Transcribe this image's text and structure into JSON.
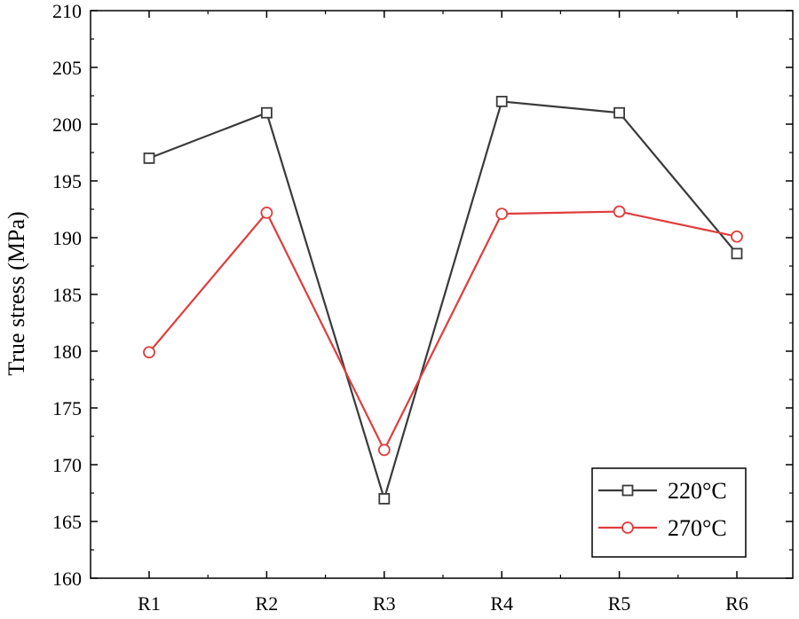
{
  "chart_data": {
    "type": "line",
    "title": "",
    "xlabel": "",
    "ylabel": "True stress (MPa)",
    "categories": [
      "R1",
      "R2",
      "R3",
      "R4",
      "R5",
      "R6"
    ],
    "ylim": [
      160,
      210
    ],
    "yticks": [
      "160",
      "165",
      "170",
      "175",
      "180",
      "185",
      "190",
      "195",
      "200",
      "205",
      "210"
    ],
    "grid": false,
    "legend_position": "bottom-right",
    "series": [
      {
        "name": "220°C",
        "values": [
          197.0,
          201.0,
          167.0,
          202.0,
          201.0,
          188.6
        ],
        "color": "#3a3a3a",
        "marker": "square"
      },
      {
        "name": "270°C",
        "values": [
          179.9,
          192.2,
          171.3,
          192.1,
          192.3,
          190.1
        ],
        "color": "#e03c3c",
        "marker": "circle"
      }
    ]
  }
}
